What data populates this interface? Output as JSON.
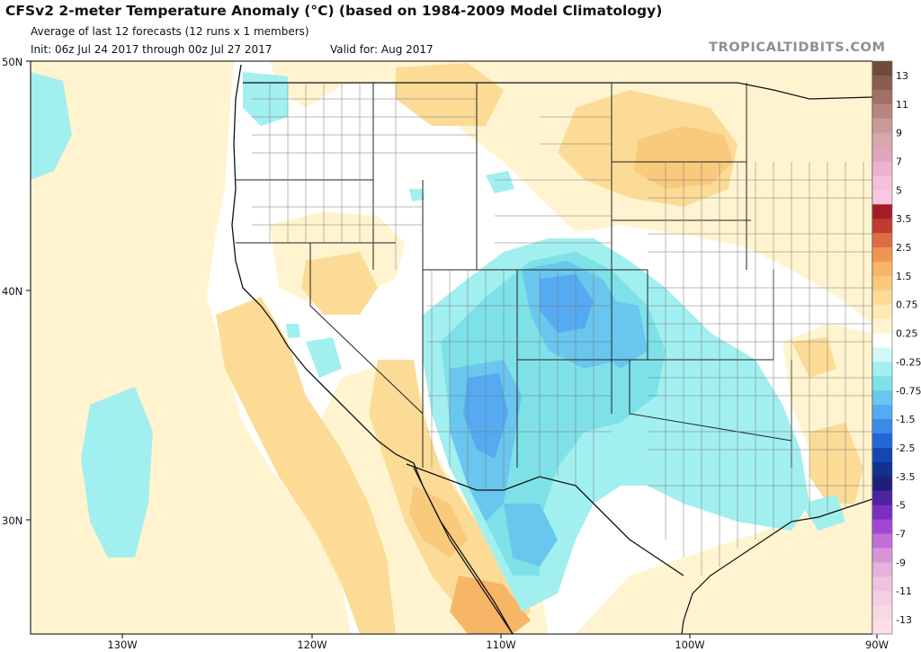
{
  "header": {
    "title": "CFSv2 2-meter Temperature Anomaly (°C) (based on 1984-2009 Model Climatology)",
    "subtitle": "Average of last 12 forecasts (12 runs x 1 members)",
    "init": "Init: 06z Jul 24 2017 through 00z Jul 27 2017",
    "valid": "Valid for: Aug 2017"
  },
  "brand": "TROPICALTIDBITS.COM",
  "axes": {
    "lat_labels": [
      "50N",
      "40N",
      "30N"
    ],
    "lon_labels": [
      "130W",
      "120W",
      "110W",
      "100W",
      "90W"
    ]
  },
  "colorbar": {
    "labels": [
      "13",
      "11",
      "9",
      "7",
      "5",
      "3.5",
      "2.5",
      "1.5",
      "0.75",
      "0.25",
      "-0.25",
      "-0.75",
      "-1.5",
      "-2.5",
      "-3.5",
      "-5",
      "-7",
      "-9",
      "-11",
      "-13"
    ],
    "colors_top_to_bottom": [
      "#6e4b3a",
      "#8a5d4f",
      "#a46f67",
      "#b98581",
      "#c99a9a",
      "#d6a7ad",
      "#e2a4bd",
      "#eeb1d0",
      "#f6bfdc",
      "#f9c8e0",
      "#a31d26",
      "#c23a31",
      "#dc6d47",
      "#ef9553",
      "#f7b566",
      "#f9c97c",
      "#fcdb97",
      "#fde9b4",
      "#fff4cf",
      "#ffffff",
      "#d2f7f6",
      "#a2efef",
      "#7ee1e8",
      "#69c6ee",
      "#55aaf1",
      "#3a8ae8",
      "#2466d6",
      "#1546b4",
      "#13308f",
      "#1f1f79",
      "#4d23a1",
      "#7a2fc2",
      "#a446d3",
      "#c36ed9",
      "#d795d8",
      "#e6b2dc",
      "#efc3df",
      "#f4cfe3",
      "#f8d8e5",
      "#fcdfe6"
    ]
  },
  "colors": {
    "warm_weak": "#fff4cf",
    "warm_light": "#fde9b4",
    "warm_mid": "#fcdb97",
    "warm_strong": "#f9c97c",
    "warm_stronger": "#f7b566",
    "cool_weak": "#d2f7f6",
    "cool_light": "#a2efef",
    "cool_mid": "#7ee1e8",
    "cool_strong": "#69c6ee",
    "cool_stronger": "#55aaf1"
  }
}
